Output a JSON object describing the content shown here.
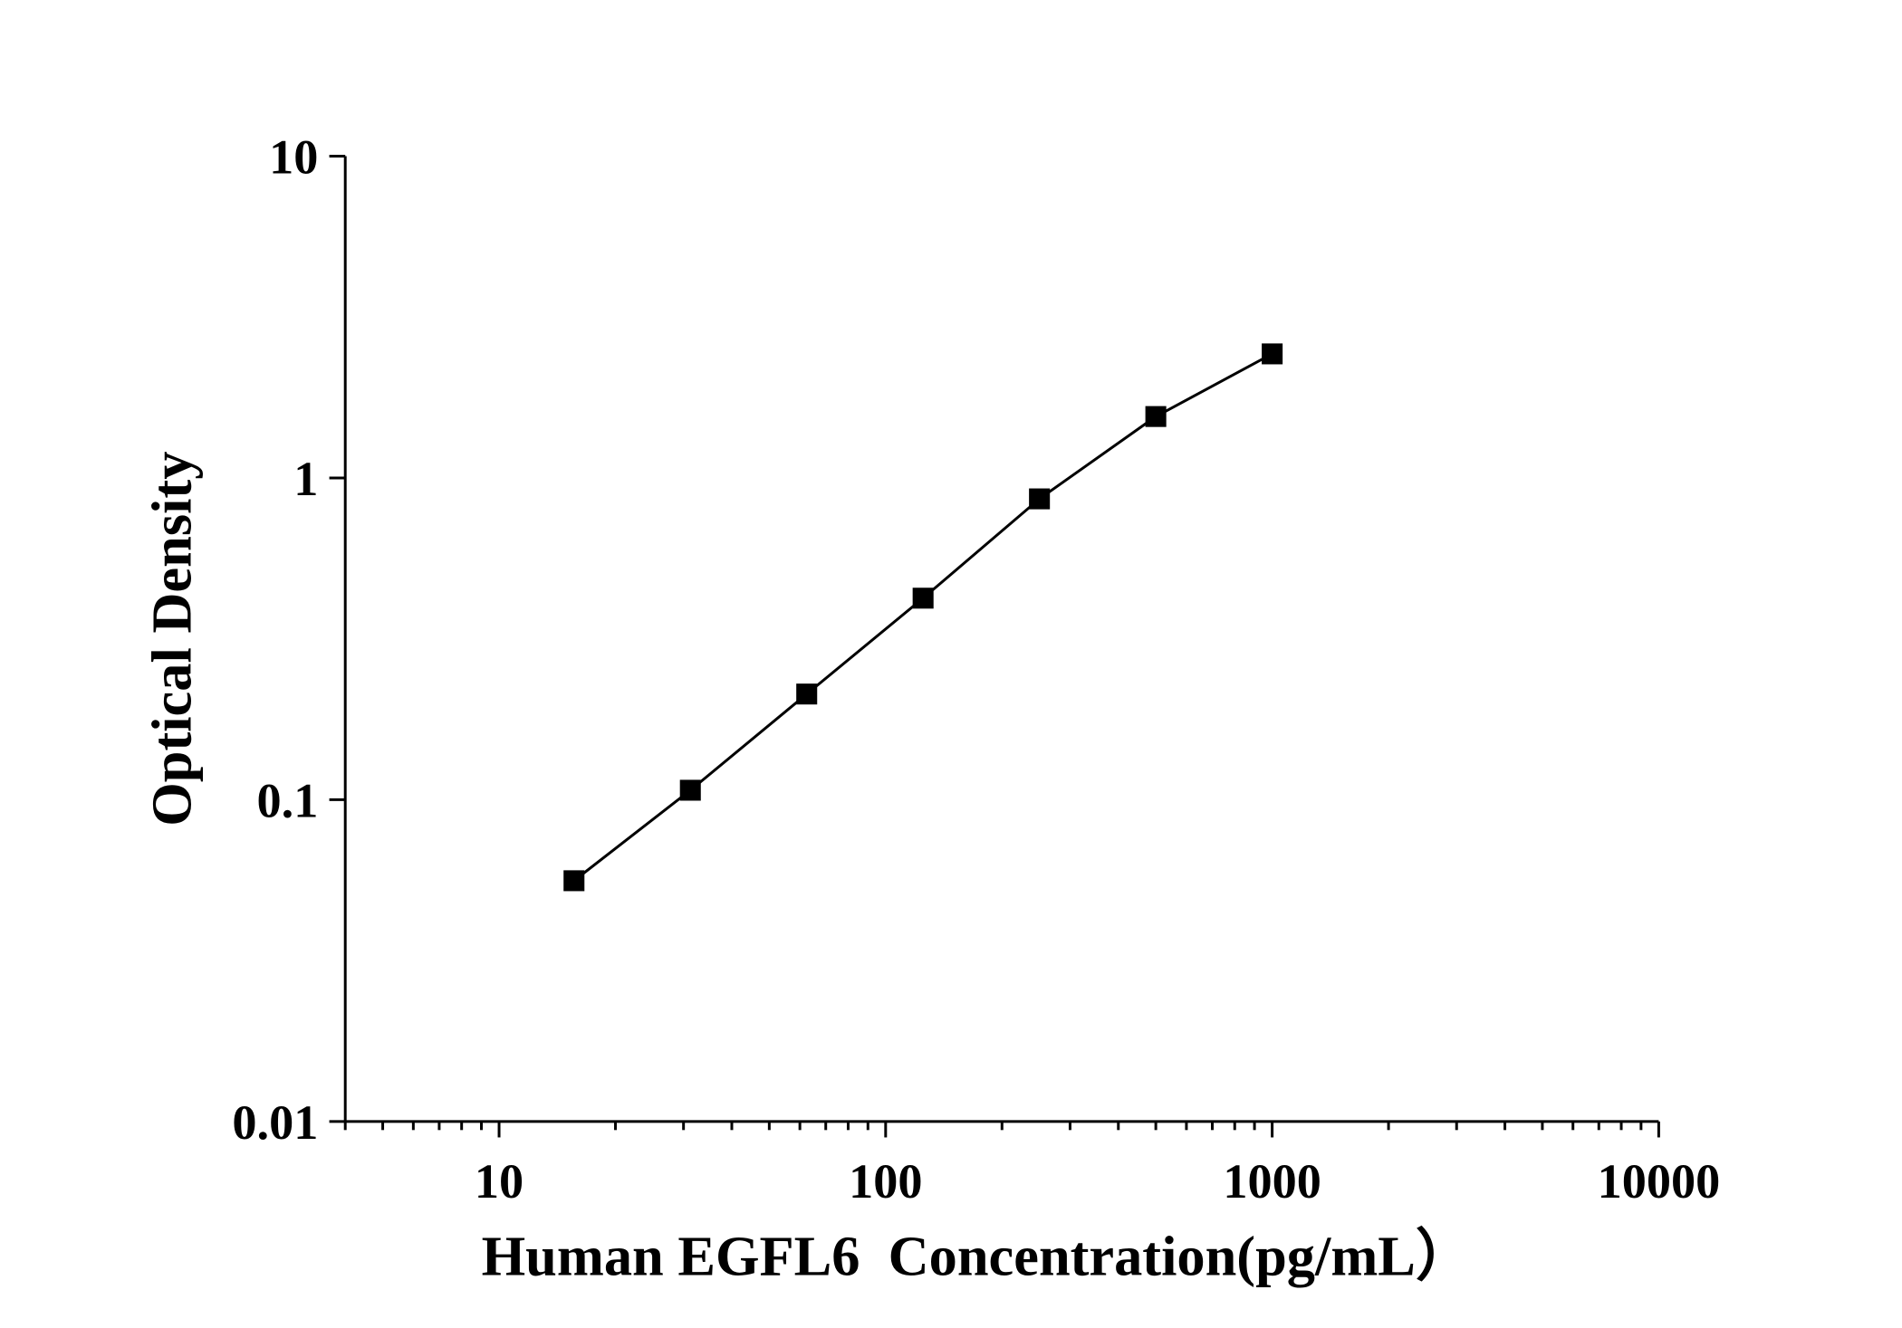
{
  "chart_data": {
    "type": "line",
    "x_label": "Human EGFL6  Concentration(pg/mL）",
    "y_label": "Optical Density",
    "x": [
      15.625,
      31.25,
      62.5,
      125,
      250,
      500,
      1000
    ],
    "series": [
      {
        "color": "#000000",
        "marker": "square",
        "values": [
          0.056,
          0.107,
          0.213,
          0.423,
          0.861,
          1.552,
          2.43
        ]
      }
    ],
    "xscale": "log",
    "yscale": "log",
    "xlim": [
      4,
      10000
    ],
    "ylim": [
      0.01,
      10
    ],
    "xticks": [
      10,
      100,
      1000,
      10000
    ],
    "yticks": [
      0.01,
      0.1,
      1,
      10
    ],
    "grid": false
  }
}
